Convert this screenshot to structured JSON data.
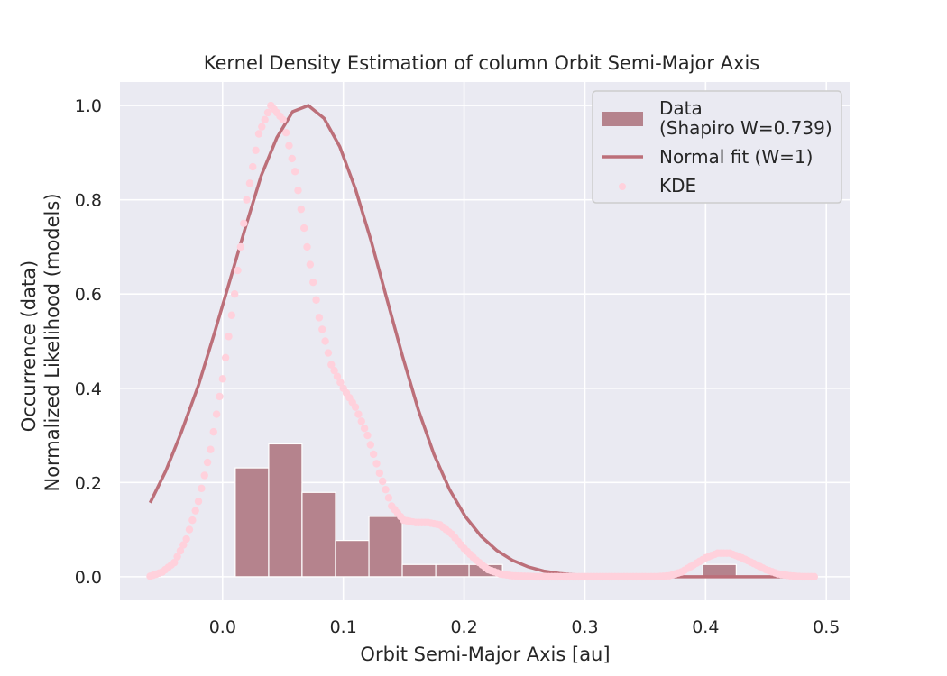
{
  "chart_data": {
    "type": "bar",
    "title": "Kernel Density Estimation of column Orbit Semi-Major Axis",
    "xlabel": "Orbit Semi-Major Axis [au]",
    "ylabel_lines": [
      "Occurrence (data)",
      "Normalized Likelihood (models)"
    ],
    "xlim": [
      -0.085,
      0.52
    ],
    "ylim": [
      -0.05,
      1.05
    ],
    "x_ticks": [
      0.0,
      0.1,
      0.2,
      0.3,
      0.4,
      0.5
    ],
    "x_tick_labels": [
      "0.0",
      "0.1",
      "0.2",
      "0.3",
      "0.4",
      "0.5"
    ],
    "y_ticks": [
      0.0,
      0.2,
      0.4,
      0.6,
      0.8,
      1.0
    ],
    "y_tick_labels": [
      "0.0",
      "0.2",
      "0.4",
      "0.6",
      "0.8",
      "1.0"
    ],
    "grid": true,
    "legend_position": "top-right",
    "colors": {
      "background": "#eaeaf2",
      "grid": "#ffffff",
      "hist": "#b5838d",
      "normal_line": "#bc6f79",
      "kde": "#ffd1dc"
    },
    "series": [
      {
        "name": "Data\n(Shapiro W=0.739)",
        "kind": "histogram",
        "bins": [
          {
            "x0": 0.0105,
            "x1": 0.0382,
            "value": 0.231
          },
          {
            "x0": 0.0382,
            "x1": 0.0658,
            "value": 0.282
          },
          {
            "x0": 0.0658,
            "x1": 0.0935,
            "value": 0.179
          },
          {
            "x0": 0.0935,
            "x1": 0.1212,
            "value": 0.077
          },
          {
            "x0": 0.1212,
            "x1": 0.1488,
            "value": 0.128
          },
          {
            "x0": 0.1488,
            "x1": 0.1765,
            "value": 0.026
          },
          {
            "x0": 0.1765,
            "x1": 0.2041,
            "value": 0.026
          },
          {
            "x0": 0.2041,
            "x1": 0.2318,
            "value": 0.026
          },
          {
            "x0": 0.2318,
            "x1": 0.2595,
            "value": 0.0
          },
          {
            "x0": 0.2595,
            "x1": 0.2871,
            "value": 0.0
          },
          {
            "x0": 0.2871,
            "x1": 0.3148,
            "value": 0.0
          },
          {
            "x0": 0.3148,
            "x1": 0.3424,
            "value": 0.0
          },
          {
            "x0": 0.3424,
            "x1": 0.3701,
            "value": 0.0
          },
          {
            "x0": 0.3701,
            "x1": 0.3977,
            "value": 0.0
          },
          {
            "x0": 0.3977,
            "x1": 0.4254,
            "value": 0.026
          }
        ]
      },
      {
        "name": "Normal fit (W=1)",
        "kind": "line",
        "x": [
          -0.06,
          -0.047,
          -0.034,
          -0.02,
          -0.007,
          0.006,
          0.019,
          0.032,
          0.045,
          0.058,
          0.071,
          0.084,
          0.097,
          0.11,
          0.123,
          0.136,
          0.149,
          0.162,
          0.175,
          0.188,
          0.201,
          0.214,
          0.227,
          0.24,
          0.253,
          0.266,
          0.279,
          0.292,
          0.305,
          0.318,
          0.331,
          0.344,
          0.357,
          0.37,
          0.383,
          0.396,
          0.409,
          0.422,
          0.435,
          0.448,
          0.461,
          0.474,
          0.49
        ],
        "y": [
          0.157,
          0.225,
          0.308,
          0.406,
          0.515,
          0.628,
          0.742,
          0.851,
          0.932,
          0.987,
          1.0,
          0.973,
          0.913,
          0.823,
          0.713,
          0.59,
          0.468,
          0.355,
          0.26,
          0.185,
          0.128,
          0.086,
          0.056,
          0.035,
          0.021,
          0.012,
          0.007,
          0.004,
          0.002,
          0.001,
          0.0,
          0.0,
          0.0,
          0.0,
          0.0,
          0.0,
          0.0,
          0.0,
          0.0,
          0.0,
          0.0,
          0.0,
          0.0
        ]
      },
      {
        "name": "KDE",
        "kind": "scatter",
        "x": [
          -0.06,
          -0.05,
          -0.04,
          -0.03,
          -0.02,
          -0.01,
          0.0,
          0.01,
          0.02,
          0.03,
          0.04,
          0.05,
          0.06,
          0.07,
          0.08,
          0.09,
          0.1,
          0.11,
          0.12,
          0.13,
          0.14,
          0.15,
          0.16,
          0.17,
          0.18,
          0.19,
          0.2,
          0.21,
          0.22,
          0.23,
          0.24,
          0.25,
          0.26,
          0.27,
          0.28,
          0.29,
          0.3,
          0.31,
          0.32,
          0.33,
          0.34,
          0.35,
          0.36,
          0.37,
          0.38,
          0.39,
          0.4,
          0.41,
          0.42,
          0.43,
          0.44,
          0.45,
          0.46,
          0.47,
          0.48,
          0.49
        ],
        "y": [
          0.001,
          0.01,
          0.03,
          0.08,
          0.16,
          0.27,
          0.42,
          0.6,
          0.8,
          0.94,
          1.0,
          0.97,
          0.86,
          0.7,
          0.55,
          0.45,
          0.4,
          0.36,
          0.3,
          0.22,
          0.15,
          0.12,
          0.115,
          0.115,
          0.11,
          0.09,
          0.06,
          0.035,
          0.015,
          0.006,
          0.002,
          0.001,
          0.0,
          0.0,
          0.0,
          0.0,
          0.0,
          0.0,
          0.0,
          0.0,
          0.0,
          0.0,
          0.0,
          0.002,
          0.01,
          0.025,
          0.04,
          0.05,
          0.05,
          0.04,
          0.028,
          0.015,
          0.006,
          0.002,
          0.0,
          0.0
        ]
      }
    ]
  }
}
